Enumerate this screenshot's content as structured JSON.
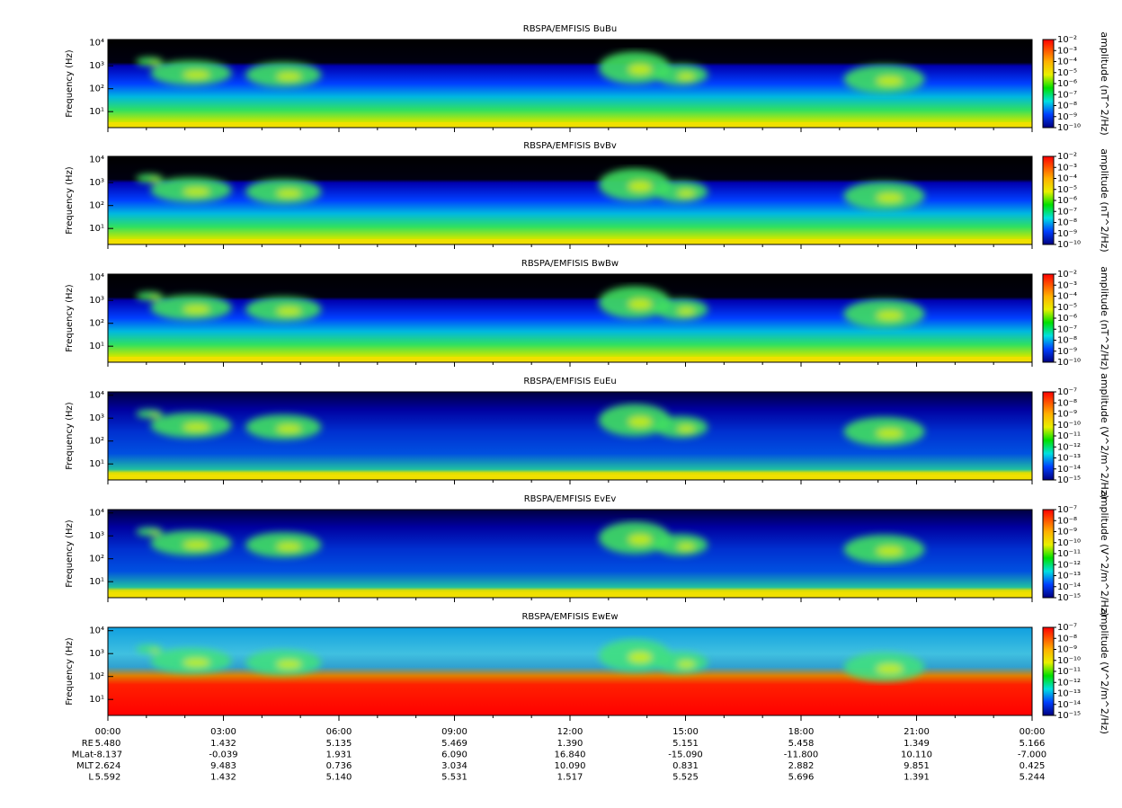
{
  "chart_data": [
    {
      "type": "spectrogram",
      "kind": "B",
      "title": "RBSPA/EMFISIS  BuBu",
      "ylabel": "Frequency (Hz)",
      "log_y": true,
      "ylim": [
        2,
        14000
      ],
      "yticks": [
        {
          "value": 10,
          "label": "10¹"
        },
        {
          "value": 100,
          "label": "10²"
        },
        {
          "value": 1000,
          "label": "10³"
        },
        {
          "value": 10000,
          "label": "10⁴"
        }
      ],
      "colorbar_label": "amplitude (nT^2/Hz)",
      "clim": [
        1e-10,
        0.01
      ],
      "cticks": [
        {
          "value": 0.01,
          "label": "10⁻²"
        },
        {
          "value": 0.001,
          "label": "10⁻³"
        },
        {
          "value": 0.0001,
          "label": "10⁻⁴"
        },
        {
          "value": 1e-05,
          "label": "10⁻⁵"
        },
        {
          "value": 1e-06,
          "label": "10⁻⁶"
        },
        {
          "value": 1e-07,
          "label": "10⁻⁷"
        },
        {
          "value": 1e-08,
          "label": "10⁻⁸"
        },
        {
          "value": 1e-09,
          "label": "10⁻⁹"
        },
        {
          "value": 1e-10,
          "label": "10⁻¹⁰"
        }
      ]
    },
    {
      "type": "spectrogram",
      "kind": "B",
      "title": "RBSPA/EMFISIS  BvBv",
      "ylabel": "Frequency (Hz)",
      "log_y": true,
      "ylim": [
        2,
        14000
      ],
      "yticks": [
        {
          "value": 10,
          "label": "10¹"
        },
        {
          "value": 100,
          "label": "10²"
        },
        {
          "value": 1000,
          "label": "10³"
        },
        {
          "value": 10000,
          "label": "10⁴"
        }
      ],
      "colorbar_label": "amplitude (nT^2/Hz)",
      "clim": [
        1e-10,
        0.01
      ],
      "cticks": [
        {
          "value": 0.01,
          "label": "10⁻²"
        },
        {
          "value": 0.001,
          "label": "10⁻³"
        },
        {
          "value": 0.0001,
          "label": "10⁻⁴"
        },
        {
          "value": 1e-05,
          "label": "10⁻⁵"
        },
        {
          "value": 1e-06,
          "label": "10⁻⁶"
        },
        {
          "value": 1e-07,
          "label": "10⁻⁷"
        },
        {
          "value": 1e-08,
          "label": "10⁻⁸"
        },
        {
          "value": 1e-09,
          "label": "10⁻⁹"
        },
        {
          "value": 1e-10,
          "label": "10⁻¹⁰"
        }
      ]
    },
    {
      "type": "spectrogram",
      "kind": "B",
      "title": "RBSPA/EMFISIS  BwBw",
      "ylabel": "Frequency (Hz)",
      "log_y": true,
      "ylim": [
        2,
        14000
      ],
      "yticks": [
        {
          "value": 10,
          "label": "10¹"
        },
        {
          "value": 100,
          "label": "10²"
        },
        {
          "value": 1000,
          "label": "10³"
        },
        {
          "value": 10000,
          "label": "10⁴"
        }
      ],
      "colorbar_label": "amplitude (nT^2/Hz)",
      "clim": [
        1e-10,
        0.01
      ],
      "cticks": [
        {
          "value": 0.01,
          "label": "10⁻²"
        },
        {
          "value": 0.001,
          "label": "10⁻³"
        },
        {
          "value": 0.0001,
          "label": "10⁻⁴"
        },
        {
          "value": 1e-05,
          "label": "10⁻⁵"
        },
        {
          "value": 1e-06,
          "label": "10⁻⁶"
        },
        {
          "value": 1e-07,
          "label": "10⁻⁷"
        },
        {
          "value": 1e-08,
          "label": "10⁻⁸"
        },
        {
          "value": 1e-09,
          "label": "10⁻⁹"
        },
        {
          "value": 1e-10,
          "label": "10⁻¹⁰"
        }
      ]
    },
    {
      "type": "spectrogram",
      "kind": "E",
      "title": "RBSPA/EMFISIS  EuEu",
      "ylabel": "Frequency (Hz)",
      "log_y": true,
      "ylim": [
        2,
        14000
      ],
      "yticks": [
        {
          "value": 10,
          "label": "10¹"
        },
        {
          "value": 100,
          "label": "10²"
        },
        {
          "value": 1000,
          "label": "10³"
        },
        {
          "value": 10000,
          "label": "10⁴"
        }
      ],
      "colorbar_label": "amplitude (V^2/m^2/Hz)",
      "clim": [
        1e-15,
        1e-07
      ],
      "cticks": [
        {
          "value": 1e-07,
          "label": "10⁻⁷"
        },
        {
          "value": 1e-08,
          "label": "10⁻⁸"
        },
        {
          "value": 1e-09,
          "label": "10⁻⁹"
        },
        {
          "value": 1e-10,
          "label": "10⁻¹⁰"
        },
        {
          "value": 1e-11,
          "label": "10⁻¹¹"
        },
        {
          "value": 1e-12,
          "label": "10⁻¹²"
        },
        {
          "value": 1e-13,
          "label": "10⁻¹³"
        },
        {
          "value": 1e-14,
          "label": "10⁻¹⁴"
        },
        {
          "value": 1e-15,
          "label": "10⁻¹⁵"
        }
      ]
    },
    {
      "type": "spectrogram",
      "kind": "E",
      "title": "RBSPA/EMFISIS  EvEv",
      "ylabel": "Frequency (Hz)",
      "log_y": true,
      "ylim": [
        2,
        14000
      ],
      "yticks": [
        {
          "value": 10,
          "label": "10¹"
        },
        {
          "value": 100,
          "label": "10²"
        },
        {
          "value": 1000,
          "label": "10³"
        },
        {
          "value": 10000,
          "label": "10⁴"
        }
      ],
      "colorbar_label": "amplitude (V^2/m^2/Hz)",
      "clim": [
        1e-15,
        1e-07
      ],
      "cticks": [
        {
          "value": 1e-07,
          "label": "10⁻⁷"
        },
        {
          "value": 1e-08,
          "label": "10⁻⁸"
        },
        {
          "value": 1e-09,
          "label": "10⁻⁹"
        },
        {
          "value": 1e-10,
          "label": "10⁻¹⁰"
        },
        {
          "value": 1e-11,
          "label": "10⁻¹¹"
        },
        {
          "value": 1e-12,
          "label": "10⁻¹²"
        },
        {
          "value": 1e-13,
          "label": "10⁻¹³"
        },
        {
          "value": 1e-14,
          "label": "10⁻¹⁴"
        },
        {
          "value": 1e-15,
          "label": "10⁻¹⁵"
        }
      ]
    },
    {
      "type": "spectrogram",
      "kind": "W",
      "title": "RBSPA/EMFISIS  EwEw",
      "ylabel": "Frequency (Hz)",
      "log_y": true,
      "ylim": [
        2,
        14000
      ],
      "yticks": [
        {
          "value": 10,
          "label": "10¹"
        },
        {
          "value": 100,
          "label": "10²"
        },
        {
          "value": 1000,
          "label": "10³"
        },
        {
          "value": 10000,
          "label": "10⁴"
        }
      ],
      "colorbar_label": "amplitude (V^2/m^2/Hz)",
      "clim": [
        1e-15,
        1e-07
      ],
      "cticks": [
        {
          "value": 1e-07,
          "label": "10⁻⁷"
        },
        {
          "value": 1e-08,
          "label": "10⁻⁸"
        },
        {
          "value": 1e-09,
          "label": "10⁻⁹"
        },
        {
          "value": 1e-10,
          "label": "10⁻¹⁰"
        },
        {
          "value": 1e-11,
          "label": "10⁻¹¹"
        },
        {
          "value": 1e-12,
          "label": "10⁻¹²"
        },
        {
          "value": 1e-13,
          "label": "10⁻¹³"
        },
        {
          "value": 1e-14,
          "label": "10⁻¹⁴"
        },
        {
          "value": 1e-15,
          "label": "10⁻¹⁵"
        }
      ]
    }
  ],
  "x_axis": {
    "xlim": [
      0,
      24
    ],
    "xticks": [
      {
        "value": 0,
        "label": "00:00"
      },
      {
        "value": 3,
        "label": "03:00"
      },
      {
        "value": 6,
        "label": "06:00"
      },
      {
        "value": 9,
        "label": "09:00"
      },
      {
        "value": 12,
        "label": "12:00"
      },
      {
        "value": 15,
        "label": "15:00"
      },
      {
        "value": 18,
        "label": "18:00"
      },
      {
        "value": 21,
        "label": "21:00"
      },
      {
        "value": 24,
        "label": "00:00"
      }
    ],
    "rows": [
      {
        "name": "RE",
        "values": [
          "5.480",
          "1.432",
          "5.135",
          "5.469",
          "1.390",
          "5.151",
          "5.458",
          "1.349",
          "5.166"
        ]
      },
      {
        "name": "MLat",
        "values": [
          "-8.137",
          "-0.039",
          "1.931",
          "6.090",
          "16.840",
          "-15.090",
          "-11.800",
          "10.110",
          "-7.000"
        ]
      },
      {
        "name": "MLT",
        "values": [
          "2.624",
          "9.483",
          "0.736",
          "3.034",
          "10.090",
          "0.831",
          "2.882",
          "9.851",
          "0.425"
        ]
      },
      {
        "name": "L",
        "values": [
          "5.592",
          "1.432",
          "5.140",
          "5.531",
          "1.517",
          "5.525",
          "5.696",
          "1.391",
          "5.244"
        ]
      }
    ]
  }
}
